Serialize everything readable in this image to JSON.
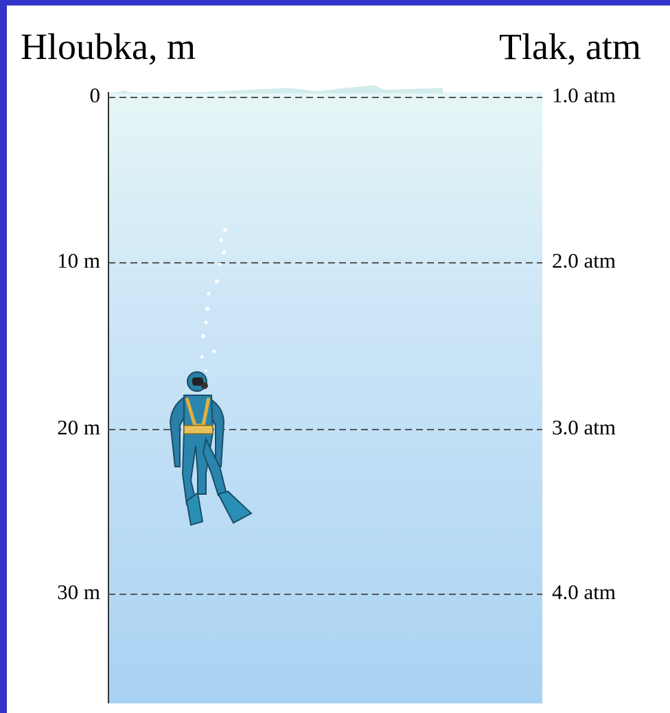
{
  "header": {
    "left": "Hloubka, m",
    "right": "Tlak, atm"
  },
  "levels": [
    {
      "depth": "0",
      "pressure": "1.0 atm"
    },
    {
      "depth": "10 m",
      "pressure": "2.0 atm"
    },
    {
      "depth": "20 m",
      "pressure": "3.0 atm"
    },
    {
      "depth": "30 m",
      "pressure": "4.0 atm"
    }
  ]
}
